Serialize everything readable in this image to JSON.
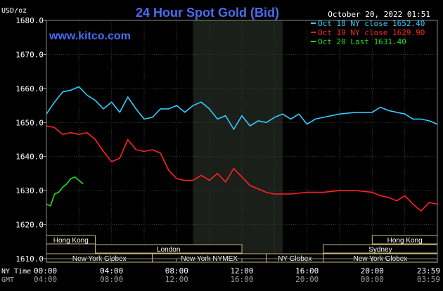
{
  "title": "24 Hour Spot Gold (Bid)",
  "date_stamp": "October 20, 2022 01:51",
  "unit_label": "USD/oz",
  "watermark": "www.kitco.com",
  "time_row_labels": {
    "ny": "NY Time",
    "gmt": "GMT"
  },
  "legend": [
    {
      "label": "Oct 18 NY close 1652.40",
      "color": "#33ccff"
    },
    {
      "label": "Oct 19 NY close 1629.90",
      "color": "#ff2222"
    },
    {
      "label": "Oct 20 Last 1631.40",
      "color": "#22dd22"
    }
  ],
  "sessions": [
    {
      "label": "Hong Kong",
      "start": 0,
      "end": 3.0,
      "row": 0
    },
    {
      "label": "Hong Kong",
      "start": 20.0,
      "end": 24.0,
      "row": 0
    },
    {
      "label": "London",
      "start": 3.0,
      "end": 12.0,
      "row": 1
    },
    {
      "label": "Sydney",
      "start": 17.0,
      "end": 24.0,
      "row": 1
    },
    {
      "label": "New York Globex",
      "start": 0,
      "end": 6.5,
      "row": 2
    },
    {
      "label": "New York NYMEX",
      "start": 6.5,
      "end": 13.5,
      "row": 2
    },
    {
      "label": "NY Globex",
      "start": 13.5,
      "end": 17.0,
      "row": 2
    },
    {
      "label": "New York Globex",
      "start": 17.0,
      "end": 24.0,
      "row": 2
    }
  ],
  "chart_data": {
    "type": "line",
    "title": "24 Hour Spot Gold (Bid)",
    "ylabel": "USD/oz",
    "xlim": [
      0,
      24
    ],
    "ylim": [
      1610,
      1680
    ],
    "y_ticks": [
      "1610.0",
      "1620.0",
      "1630.0",
      "1640.0",
      "1650.0",
      "1660.0",
      "1670.0",
      "1680.0"
    ],
    "x_ticks_ny": [
      "00:00",
      "04:00",
      "08:00",
      "12:00",
      "16:00",
      "20:00",
      "23:59"
    ],
    "x_ticks_gmt": [
      "04:00",
      "08:00",
      "12:00",
      "16:00",
      "20:00",
      "00:00",
      "03:59"
    ],
    "nymex_session_hours": [
      9.0,
      14.5
    ],
    "grid": true,
    "series": [
      {
        "name": "Oct 18 NY close 1652.40",
        "color": "#33ccff",
        "points": [
          [
            0,
            1652.5
          ],
          [
            0.5,
            1656
          ],
          [
            1,
            1659
          ],
          [
            1.5,
            1659.5
          ],
          [
            2,
            1660.5
          ],
          [
            2.5,
            1658
          ],
          [
            3,
            1656.5
          ],
          [
            3.5,
            1654
          ],
          [
            4,
            1656
          ],
          [
            4.5,
            1653
          ],
          [
            5,
            1657.5
          ],
          [
            5.5,
            1654
          ],
          [
            6,
            1651
          ],
          [
            6.5,
            1651.5
          ],
          [
            7,
            1654
          ],
          [
            7.5,
            1654
          ],
          [
            8,
            1655
          ],
          [
            8.5,
            1653
          ],
          [
            9,
            1655
          ],
          [
            9.5,
            1656
          ],
          [
            10,
            1654
          ],
          [
            10.5,
            1651
          ],
          [
            11,
            1652
          ],
          [
            11.5,
            1648
          ],
          [
            12,
            1652
          ],
          [
            12.5,
            1649
          ],
          [
            13,
            1650.5
          ],
          [
            13.5,
            1650
          ],
          [
            14,
            1651.5
          ],
          [
            14.5,
            1652.5
          ],
          [
            15,
            1651
          ],
          [
            15.5,
            1652.5
          ],
          [
            16,
            1649.5
          ],
          [
            16.5,
            1651
          ],
          [
            17,
            1651.5
          ],
          [
            18,
            1652.5
          ],
          [
            19,
            1653
          ],
          [
            20,
            1653
          ],
          [
            20.5,
            1654.5
          ],
          [
            21,
            1653.5
          ],
          [
            22,
            1652.5
          ],
          [
            22.5,
            1651
          ],
          [
            23,
            1651
          ],
          [
            23.5,
            1650.5
          ],
          [
            24,
            1649.5
          ]
        ]
      },
      {
        "name": "Oct 19 NY close 1629.90",
        "color": "#ff2222",
        "points": [
          [
            0,
            1649
          ],
          [
            0.5,
            1648.5
          ],
          [
            1,
            1646.5
          ],
          [
            1.5,
            1647
          ],
          [
            2,
            1646.5
          ],
          [
            2.5,
            1647
          ],
          [
            3,
            1645
          ],
          [
            3.5,
            1641.5
          ],
          [
            4,
            1638.5
          ],
          [
            4.5,
            1639.5
          ],
          [
            5,
            1645
          ],
          [
            5.5,
            1642
          ],
          [
            6,
            1641.5
          ],
          [
            6.5,
            1642
          ],
          [
            7,
            1641
          ],
          [
            7.5,
            1636
          ],
          [
            8,
            1633.5
          ],
          [
            8.5,
            1633
          ],
          [
            9,
            1633
          ],
          [
            9.5,
            1634.5
          ],
          [
            10,
            1633
          ],
          [
            10.5,
            1635
          ],
          [
            11,
            1632.5
          ],
          [
            11.5,
            1636.5
          ],
          [
            12,
            1634
          ],
          [
            12.5,
            1631.5
          ],
          [
            13,
            1630.5
          ],
          [
            13.5,
            1629.5
          ],
          [
            14,
            1629
          ],
          [
            15,
            1629
          ],
          [
            16,
            1629.5
          ],
          [
            17,
            1629.5
          ],
          [
            18,
            1630
          ],
          [
            19,
            1630
          ],
          [
            20,
            1629.5
          ],
          [
            20.5,
            1628.5
          ],
          [
            21,
            1628
          ],
          [
            21.5,
            1627
          ],
          [
            22,
            1628.5
          ],
          [
            22.5,
            1626
          ],
          [
            23,
            1624
          ],
          [
            23.5,
            1626.5
          ],
          [
            24,
            1626
          ]
        ]
      },
      {
        "name": "Oct 20 Last 1631.40",
        "color": "#22dd22",
        "points": [
          [
            0,
            1626
          ],
          [
            0.25,
            1625.5
          ],
          [
            0.5,
            1629
          ],
          [
            0.75,
            1629.5
          ],
          [
            1,
            1631
          ],
          [
            1.25,
            1632
          ],
          [
            1.5,
            1633.5
          ],
          [
            1.75,
            1634
          ],
          [
            2,
            1633
          ],
          [
            2.25,
            1632
          ]
        ]
      }
    ]
  }
}
